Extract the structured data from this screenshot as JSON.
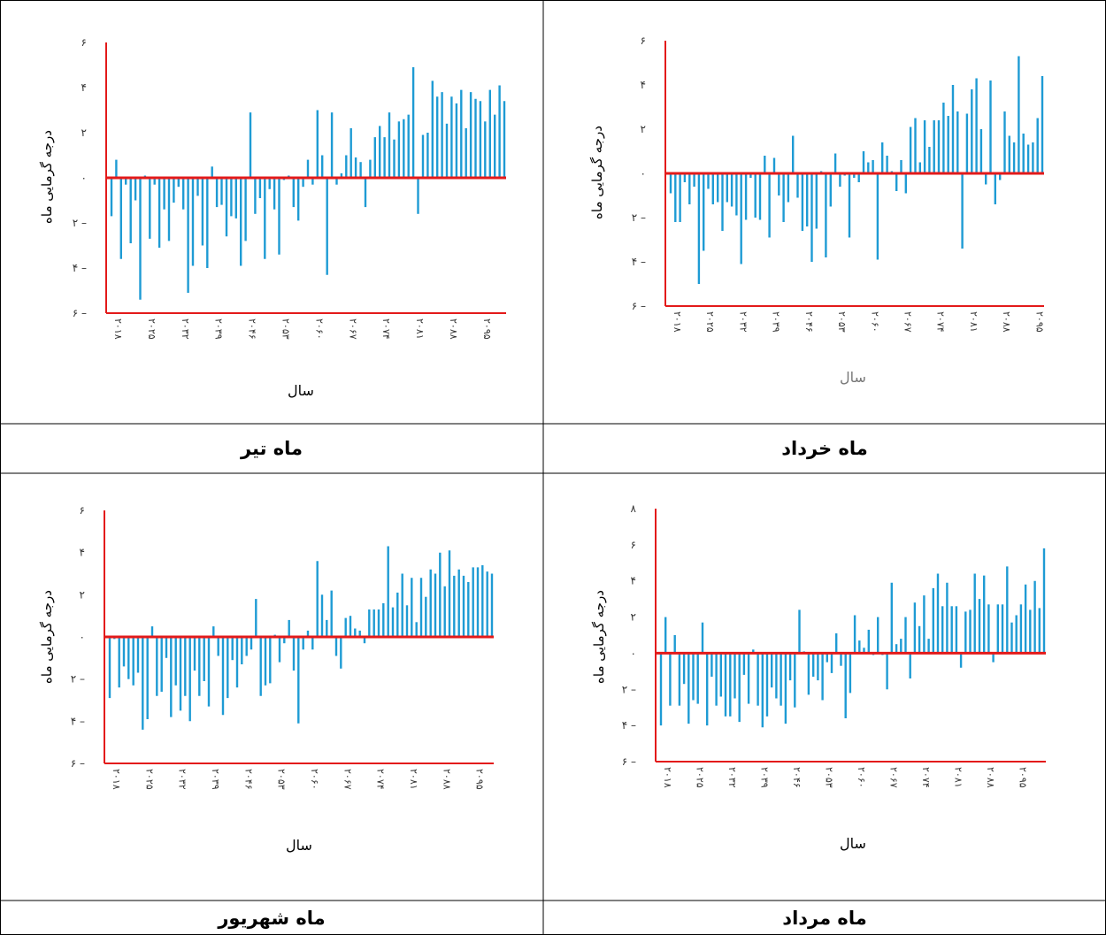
{
  "colors": {
    "bar": "#1E9BD4",
    "axis": "#E31A1A",
    "grid_border": "#000000",
    "text": "#000000"
  },
  "chart_data": [
    {
      "id": "tir",
      "caption": "ماه تیر",
      "type": "bar",
      "ylabel": "درجه گرمایی ماه",
      "xlabel": "سال",
      "ylim": [
        -6,
        6
      ],
      "yticks": [
        "۶",
        "۴",
        "۲",
        "۰",
        "۲ –",
        "۴ –",
        "۶ –"
      ],
      "xticks": [
        "۲۰۱۸",
        "۲۰۲۵",
        "۲۰۳۲",
        "۲۰۳۹",
        "۲۰۴۶",
        "۲۰۵۳",
        "۲۰۶۰",
        "۲۰۶۷",
        "۲۰۷۴",
        "۲۰۸۱",
        "۲۰۸۸",
        "۲۰۹۵"
      ],
      "x_start": 2018,
      "values": [
        -1.7,
        0.8,
        -3.6,
        -0.3,
        -2.9,
        -1.0,
        -5.4,
        0.1,
        -2.7,
        -0.3,
        -3.1,
        -1.4,
        -2.8,
        -1.1,
        -0.4,
        -1.4,
        -5.1,
        -3.9,
        -0.8,
        -3.0,
        -4.0,
        0.5,
        -1.3,
        -1.2,
        -2.6,
        -1.7,
        -1.8,
        -3.9,
        -2.8,
        2.9,
        -1.6,
        -0.9,
        -3.6,
        -0.5,
        -1.4,
        -3.4,
        -0.1,
        0.1,
        -1.3,
        -1.9,
        -0.4,
        0.8,
        -0.3,
        3.0,
        1.0,
        -4.3,
        2.9,
        -0.3,
        0.2,
        1.0,
        2.2,
        0.9,
        0.7,
        -1.3,
        0.8,
        1.8,
        2.3,
        1.8,
        2.9,
        1.7,
        2.5,
        2.6,
        2.8,
        4.9,
        -1.6,
        1.9,
        2.0,
        4.3,
        3.6,
        3.8,
        2.4,
        3.6,
        3.3,
        3.9,
        2.2,
        3.8,
        3.5,
        3.4,
        2.5,
        3.9,
        2.8,
        4.1,
        3.4
      ]
    },
    {
      "id": "khordad",
      "caption": "ماه خرداد",
      "type": "bar",
      "ylabel": "درجه گرمایی ماه",
      "xlabel": "سال",
      "ylim": [
        -6,
        6
      ],
      "yticks": [
        "۶",
        "۴",
        "۲",
        "۰",
        "۲ –",
        "۴ –",
        "۶ –"
      ],
      "xticks": [
        "۲۰۱۸",
        "۲۰۲۵",
        "۲۰۳۲",
        "۲۰۳۹",
        "۲۰۴۶",
        "۲۰۵۳",
        "۲۰۶۰",
        "۲۰۶۷",
        "۲۰۷۴",
        "۲۰۸۱",
        "۲۰۸۸",
        "۲۰۹۵"
      ],
      "x_start": 2018,
      "values": [
        -0.9,
        -2.2,
        -2.2,
        -0.4,
        -1.4,
        -0.6,
        -5.0,
        -3.5,
        -0.7,
        -1.4,
        -1.3,
        -2.6,
        -1.3,
        -1.5,
        -1.9,
        -4.1,
        -2.1,
        -0.2,
        -2.0,
        -2.1,
        0.8,
        -2.9,
        0.7,
        -1.0,
        -2.2,
        -1.3,
        1.7,
        -1.1,
        -2.6,
        -2.4,
        -4.0,
        -2.5,
        0.1,
        -3.8,
        -1.5,
        0.9,
        -0.6,
        -0.1,
        -2.9,
        -0.2,
        -0.4,
        1.0,
        0.5,
        0.6,
        -3.9,
        1.4,
        0.8,
        0.1,
        -0.8,
        0.6,
        -0.9,
        2.1,
        2.5,
        0.5,
        2.4,
        1.2,
        2.4,
        2.4,
        3.2,
        2.6,
        4.0,
        2.8,
        -3.4,
        2.7,
        3.8,
        4.3,
        2.0,
        -0.5,
        4.2,
        -1.4,
        -0.3,
        2.8,
        1.7,
        1.4,
        5.3,
        1.8,
        1.3,
        1.4,
        2.5,
        4.4
      ]
    },
    {
      "id": "shahrivar",
      "caption": "ماه شهریور",
      "type": "bar",
      "ylabel": "درجه گرمایی ماه",
      "xlabel": "سال",
      "ylim": [
        -6,
        6
      ],
      "yticks": [
        "۶",
        "۴",
        "۲",
        "۰",
        "۲ –",
        "۴ –",
        "۶ –"
      ],
      "xticks": [
        "۲۰۱۸",
        "۲۰۲۵",
        "۲۰۳۲",
        "۲۰۳۹",
        "۲۰۴۶",
        "۲۰۵۳",
        "۲۰۶۰",
        "۲۰۶۷",
        "۲۰۷۴",
        "۲۰۸۱",
        "۲۰۸۸",
        "۲۰۹۵"
      ],
      "x_start": 2018,
      "values": [
        -2.9,
        -0.1,
        -2.4,
        -1.4,
        -2.0,
        -2.3,
        -1.7,
        -4.4,
        -3.9,
        0.5,
        -2.8,
        -2.6,
        -1.0,
        -3.8,
        -2.3,
        -3.5,
        -2.8,
        -4.0,
        -1.6,
        -2.8,
        -2.1,
        -3.3,
        0.5,
        -0.9,
        -3.7,
        -2.9,
        -1.1,
        -2.4,
        -1.3,
        -0.9,
        -0.6,
        1.8,
        -2.8,
        -2.3,
        -2.2,
        0.1,
        -1.2,
        -0.3,
        0.8,
        -1.6,
        -4.1,
        -0.6,
        0.3,
        -0.6,
        3.6,
        2.0,
        0.8,
        2.2,
        -0.9,
        -1.5,
        0.9,
        1.0,
        0.4,
        0.3,
        -0.3,
        1.3,
        1.3,
        1.3,
        1.6,
        4.3,
        1.4,
        2.1,
        3.0,
        1.5,
        2.8,
        0.7,
        2.8,
        1.9,
        3.2,
        3.0,
        4.0,
        2.4,
        4.1,
        2.9,
        3.2,
        2.9,
        2.6,
        3.3,
        3.3,
        3.4,
        3.1,
        3.0
      ]
    },
    {
      "id": "mordad",
      "caption": "ماه مرداد",
      "type": "bar",
      "ylabel": "درجه گرمایی ماه",
      "xlabel": "سال",
      "ylim": [
        -6,
        8
      ],
      "yticks": [
        "۸",
        "۶",
        "۴",
        "۲",
        "۰",
        "۲ –",
        "۴ –",
        "۶ –"
      ],
      "xticks": [
        "۲۰۱۸",
        "۲۰۲۵",
        "۲۰۳۲",
        "۲۰۳۹",
        "۲۰۴۶",
        "۲۰۵۳",
        "۲۰۶۰",
        "۲۰۶۷",
        "۲۰۷۴",
        "۲۰۸۱",
        "۲۰۸۸",
        "۲۰۹۵"
      ],
      "x_start": 2018,
      "values": [
        -4.0,
        2.0,
        -2.9,
        1.0,
        -2.9,
        -1.7,
        -3.9,
        -2.6,
        -2.8,
        1.7,
        -4.0,
        -1.3,
        -2.9,
        -2.4,
        -3.5,
        -3.5,
        -2.5,
        -3.8,
        -1.2,
        -2.8,
        0.2,
        -2.9,
        -4.1,
        -3.5,
        -1.9,
        -2.5,
        -2.9,
        -3.9,
        -1.5,
        -3.0,
        2.4,
        0.1,
        -2.3,
        -1.3,
        -1.5,
        -2.6,
        -0.5,
        -1.1,
        1.1,
        -0.7,
        -3.6,
        -2.2,
        2.1,
        0.7,
        0.3,
        1.3,
        -0.1,
        2.0,
        -0.1,
        -2.0,
        3.9,
        0.5,
        0.8,
        2.0,
        -1.4,
        2.8,
        1.5,
        3.2,
        0.8,
        3.6,
        4.4,
        2.6,
        3.9,
        2.6,
        2.6,
        -0.8,
        2.3,
        2.4,
        4.4,
        3.0,
        4.3,
        2.7,
        -0.5,
        2.7,
        2.7,
        4.8,
        1.7,
        2.1,
        2.7,
        3.8,
        2.4,
        4.0,
        2.5,
        5.8
      ]
    }
  ]
}
